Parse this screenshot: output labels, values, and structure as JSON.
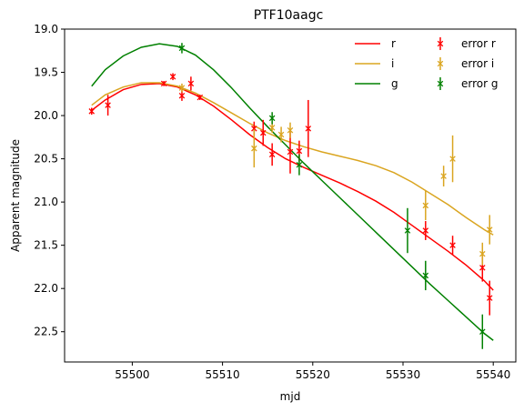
{
  "chart_data": {
    "type": "line",
    "title": "PTF10aagc",
    "xlabel": "mjd",
    "ylabel": "Apparent magnitude",
    "xlim": [
      55492.5,
      55542.5
    ],
    "ylim": [
      22.85,
      19.0
    ],
    "y_inverted": true,
    "xticks": [
      55500,
      55510,
      55520,
      55530,
      55540
    ],
    "xtick_labels": [
      "55500",
      "55510",
      "55520",
      "55530",
      "55540"
    ],
    "yticks": [
      19.0,
      19.5,
      20.0,
      20.5,
      21.0,
      21.5,
      22.0,
      22.5
    ],
    "ytick_labels": [
      "19.0",
      "19.5",
      "20.0",
      "20.5",
      "21.0",
      "21.5",
      "22.0",
      "22.5"
    ],
    "legend_position": "top-right",
    "legend_columns": 2,
    "lines": [
      {
        "name": "r",
        "color": "#ff0000",
        "x": [
          55495.5,
          55497,
          55499,
          55501,
          55503,
          55505,
          55507,
          55509,
          55511,
          55513,
          55515,
          55517,
          55519,
          55521,
          55523,
          55525,
          55527,
          55529,
          55531,
          55533,
          55535,
          55537,
          55539,
          55540
        ],
        "y": [
          19.94,
          19.82,
          19.7,
          19.64,
          19.63,
          19.67,
          19.76,
          19.89,
          20.05,
          20.22,
          20.37,
          20.5,
          20.6,
          20.69,
          20.78,
          20.88,
          20.99,
          21.12,
          21.27,
          21.42,
          21.57,
          21.73,
          21.91,
          22.02
        ]
      },
      {
        "name": "i",
        "color": "#daa520",
        "x": [
          55495.5,
          55497,
          55499,
          55501,
          55503,
          55505,
          55507,
          55509,
          55511,
          55513,
          55515,
          55517,
          55519,
          55521,
          55523,
          55525,
          55527,
          55529,
          55531,
          55533,
          55535,
          55537,
          55539,
          55540
        ],
        "y": [
          19.88,
          19.76,
          19.67,
          19.62,
          19.62,
          19.66,
          19.74,
          19.85,
          19.97,
          20.09,
          20.2,
          20.29,
          20.36,
          20.42,
          20.47,
          20.52,
          20.58,
          20.66,
          20.77,
          20.9,
          21.03,
          21.18,
          21.32,
          21.38
        ]
      },
      {
        "name": "g",
        "color": "#008000",
        "x": [
          55495.5,
          55497,
          55499,
          55501,
          55503,
          55505,
          55507,
          55509,
          55511,
          55513,
          55515,
          55517,
          55519,
          55521,
          55523,
          55525,
          55527,
          55529,
          55531,
          55533,
          55535,
          55537,
          55539,
          55540
        ],
        "y": [
          19.66,
          19.47,
          19.31,
          19.21,
          19.17,
          19.2,
          19.3,
          19.47,
          19.68,
          19.91,
          20.13,
          20.34,
          20.55,
          20.75,
          20.95,
          21.15,
          21.35,
          21.55,
          21.75,
          21.95,
          22.14,
          22.33,
          22.52,
          22.6
        ]
      }
    ],
    "errorbars": [
      {
        "name": "error r",
        "color": "#ff0000",
        "points": [
          {
            "x": 55495.5,
            "y": 19.95,
            "err": 0.04
          },
          {
            "x": 55497.3,
            "y": 19.88,
            "err": 0.12
          },
          {
            "x": 55503.5,
            "y": 19.63,
            "err": 0.03
          },
          {
            "x": 55504.5,
            "y": 19.55,
            "err": 0.04
          },
          {
            "x": 55505.5,
            "y": 19.77,
            "err": 0.06
          },
          {
            "x": 55506.5,
            "y": 19.63,
            "err": 0.08
          },
          {
            "x": 55507.5,
            "y": 19.79,
            "err": 0.03
          },
          {
            "x": 55513.5,
            "y": 20.15,
            "err": 0.08
          },
          {
            "x": 55514.5,
            "y": 20.2,
            "err": 0.15
          },
          {
            "x": 55515.5,
            "y": 20.45,
            "err": 0.13
          },
          {
            "x": 55517.5,
            "y": 20.42,
            "err": 0.25
          },
          {
            "x": 55518.5,
            "y": 20.41,
            "err": 0.12
          },
          {
            "x": 55519.5,
            "y": 20.15,
            "err": 0.33
          },
          {
            "x": 55532.5,
            "y": 21.33,
            "err": 0.11
          },
          {
            "x": 55535.5,
            "y": 21.5,
            "err": 0.11
          },
          {
            "x": 55538.8,
            "y": 21.76,
            "err": 0.16
          },
          {
            "x": 55539.6,
            "y": 22.11,
            "err": 0.2
          }
        ]
      },
      {
        "name": "error i",
        "color": "#daa520",
        "points": [
          {
            "x": 55505.5,
            "y": 19.68,
            "err": 0.05
          },
          {
            "x": 55513.5,
            "y": 20.38,
            "err": 0.22
          },
          {
            "x": 55515.5,
            "y": 20.14,
            "err": 0.06
          },
          {
            "x": 55516.5,
            "y": 20.22,
            "err": 0.09
          },
          {
            "x": 55517.5,
            "y": 20.17,
            "err": 0.09
          },
          {
            "x": 55532.5,
            "y": 21.04,
            "err": 0.17
          },
          {
            "x": 55534.5,
            "y": 20.7,
            "err": 0.12
          },
          {
            "x": 55535.5,
            "y": 20.5,
            "err": 0.27
          },
          {
            "x": 55538.8,
            "y": 21.6,
            "err": 0.13
          },
          {
            "x": 55539.6,
            "y": 21.32,
            "err": 0.17
          }
        ]
      },
      {
        "name": "error g",
        "color": "#008000",
        "points": [
          {
            "x": 55505.5,
            "y": 19.22,
            "err": 0.06
          },
          {
            "x": 55515.5,
            "y": 20.03,
            "err": 0.07
          },
          {
            "x": 55518.5,
            "y": 20.57,
            "err": 0.12
          },
          {
            "x": 55530.5,
            "y": 21.33,
            "err": 0.26
          },
          {
            "x": 55532.5,
            "y": 21.85,
            "err": 0.17
          },
          {
            "x": 55538.8,
            "y": 22.5,
            "err": 0.2
          }
        ]
      }
    ]
  }
}
